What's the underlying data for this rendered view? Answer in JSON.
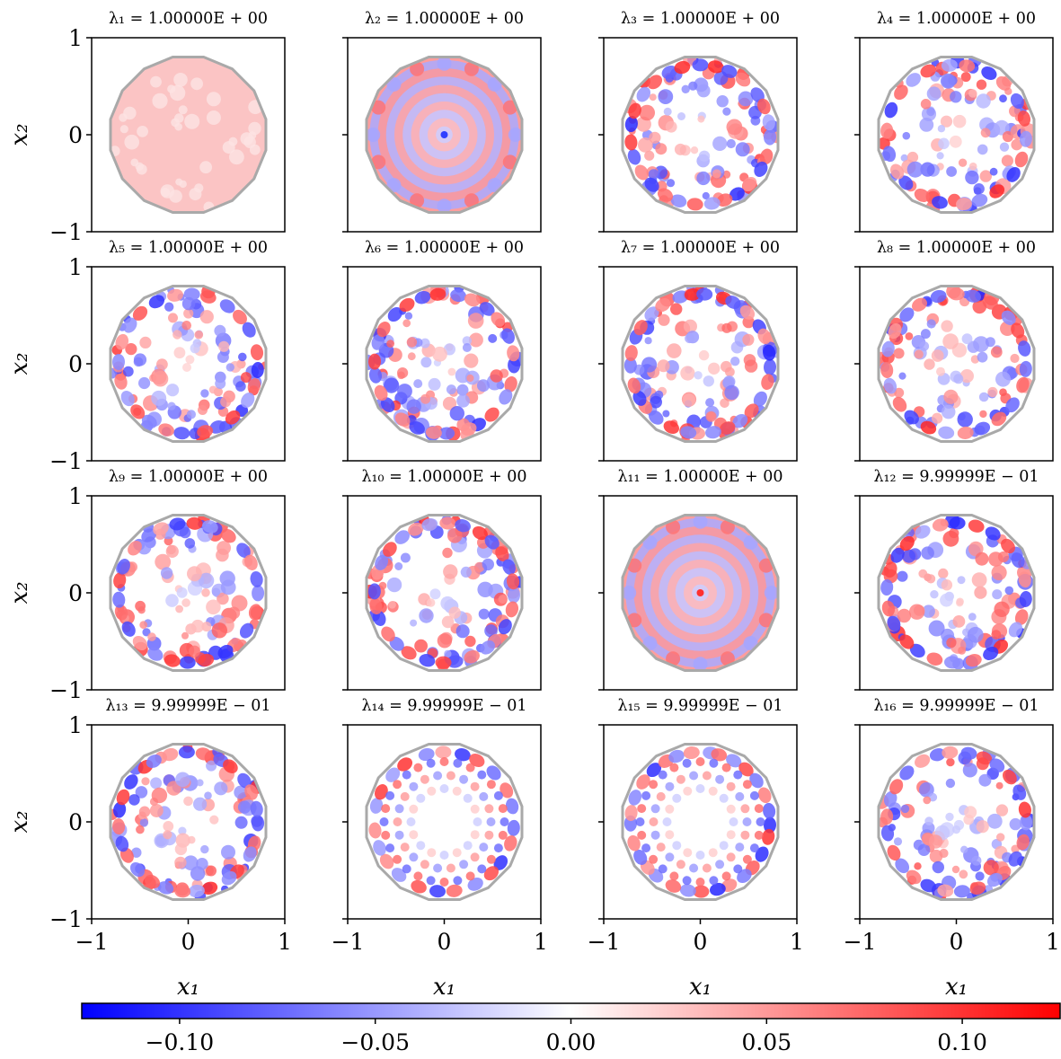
{
  "chart_data": {
    "type": "heatmap",
    "layout": "4x4 grid of eigenfunction heatmaps on a 16-sided polygonal domain",
    "colormap": "bwr",
    "panels": [
      {
        "id": 1,
        "title": "λ₁ = 1.00000E + 00",
        "eigenvalue": 1.0,
        "pattern": "uniform-positive"
      },
      {
        "id": 2,
        "title": "λ₂ = 1.00000E + 00",
        "eigenvalue": 1.0,
        "pattern": "radial-rings"
      },
      {
        "id": 3,
        "title": "λ₃ = 1.00000E + 00",
        "eigenvalue": 1.0,
        "pattern": "mixed"
      },
      {
        "id": 4,
        "title": "λ₄ = 1.00000E + 00",
        "eigenvalue": 1.0,
        "pattern": "mixed"
      },
      {
        "id": 5,
        "title": "λ₅ = 1.00000E + 00",
        "eigenvalue": 1.0,
        "pattern": "mixed"
      },
      {
        "id": 6,
        "title": "λ₆ = 1.00000E + 00",
        "eigenvalue": 1.0,
        "pattern": "mixed"
      },
      {
        "id": 7,
        "title": "λ₇ = 1.00000E + 00",
        "eigenvalue": 1.0,
        "pattern": "mixed"
      },
      {
        "id": 8,
        "title": "λ₈ = 1.00000E + 00",
        "eigenvalue": 1.0,
        "pattern": "mixed"
      },
      {
        "id": 9,
        "title": "λ₉ = 1.00000E + 00",
        "eigenvalue": 1.0,
        "pattern": "mixed"
      },
      {
        "id": 10,
        "title": "λ₁₀ = 1.00000E + 00",
        "eigenvalue": 1.0,
        "pattern": "mixed"
      },
      {
        "id": 11,
        "title": "λ₁₁ = 1.00000E + 00",
        "eigenvalue": 1.0,
        "pattern": "radial-rings"
      },
      {
        "id": 12,
        "title": "λ₁₂ = 9.99999E − 01",
        "eigenvalue": 0.999999,
        "pattern": "mixed"
      },
      {
        "id": 13,
        "title": "λ₁₃ = 9.99999E − 01",
        "eigenvalue": 0.999999,
        "pattern": "mixed"
      },
      {
        "id": 14,
        "title": "λ₁₄ = 9.99999E − 01",
        "eigenvalue": 0.999999,
        "pattern": "angular"
      },
      {
        "id": 15,
        "title": "λ₁₅ = 9.99999E − 01",
        "eigenvalue": 0.999999,
        "pattern": "angular"
      },
      {
        "id": 16,
        "title": "λ₁₆ = 9.99999E − 01",
        "eigenvalue": 0.999999,
        "pattern": "mixed"
      }
    ],
    "xlabel": "x₁",
    "ylabel": "x₂",
    "xlim": [
      -1,
      1
    ],
    "ylim": [
      -1,
      1
    ],
    "x_ticks": [
      -1,
      0,
      1
    ],
    "y_ticks": [
      -1,
      0,
      1
    ],
    "x_tick_labels": [
      "−1",
      "0",
      "1"
    ],
    "y_tick_labels": [
      "−1",
      "0",
      "1"
    ],
    "colorbar": {
      "min": -0.125,
      "max": 0.125,
      "ticks": [
        -0.1,
        -0.05,
        0.0,
        0.05,
        0.1
      ],
      "tick_labels": [
        "−0.10",
        "−0.05",
        "0.00",
        "0.05",
        "0.10"
      ],
      "colors": [
        "#0000ff",
        "#ffffff",
        "#ff0000"
      ]
    },
    "domain_outline_color": "#a9a9a9",
    "grid": false,
    "legend": "none"
  }
}
